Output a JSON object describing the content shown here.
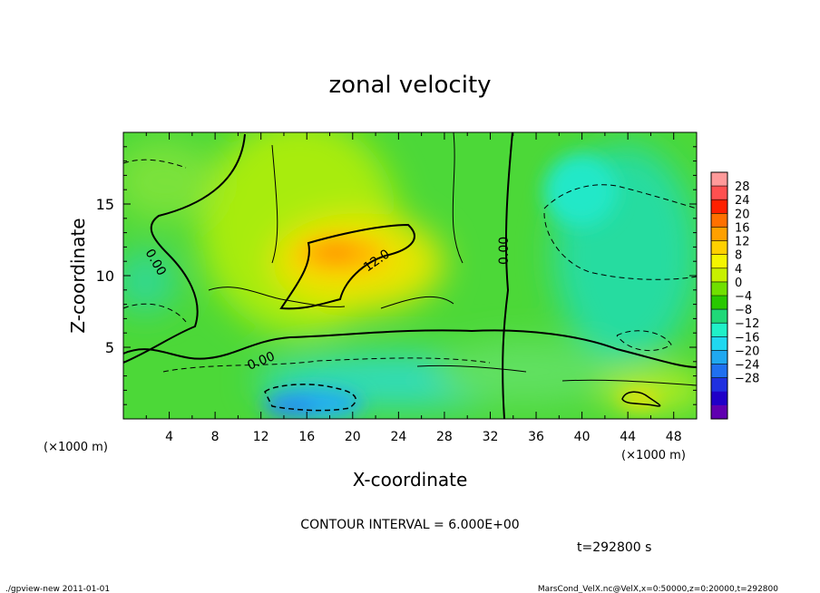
{
  "chart_data": {
    "type": "heatmap",
    "title": "zonal velocity",
    "xlabel": "X-coordinate",
    "ylabel": "Z-coordinate",
    "x_unit_left": "(×1000 m)",
    "x_unit_right": "(×1000 m)",
    "xlim": [
      0,
      50
    ],
    "ylim": [
      0,
      20
    ],
    "x_ticks": [
      4,
      8,
      12,
      16,
      20,
      24,
      28,
      32,
      36,
      40,
      44,
      48
    ],
    "y_ticks": [
      5,
      10,
      15
    ],
    "colorbar": {
      "labels": [
        28,
        24,
        20,
        16,
        12,
        8,
        4,
        0,
        -4,
        -8,
        -12,
        -16,
        -20,
        -24,
        -28
      ],
      "colors": [
        "#ff9a9a",
        "#ff5050",
        "#ff2000",
        "#ff7000",
        "#ffa000",
        "#ffd000",
        "#f5f500",
        "#c8f000",
        "#70e000",
        "#28c800",
        "#20d878",
        "#20f0c8",
        "#20d8f0",
        "#20a8f0",
        "#2070f0",
        "#2030e0",
        "#2000c8",
        "#6000b0"
      ]
    },
    "contour_labels": [
      "0.00",
      "12.0",
      "0.00",
      "0.00"
    ],
    "contour_interval_text": "CONTOUR INTERVAL = 6.000E+00",
    "time_text": "t=292800 s"
  },
  "footer": {
    "left": "./gpview-new  2011-01-01",
    "right": "MarsCond_VelX.nc@VelX,x=0:50000,z=0:20000,t=292800"
  }
}
